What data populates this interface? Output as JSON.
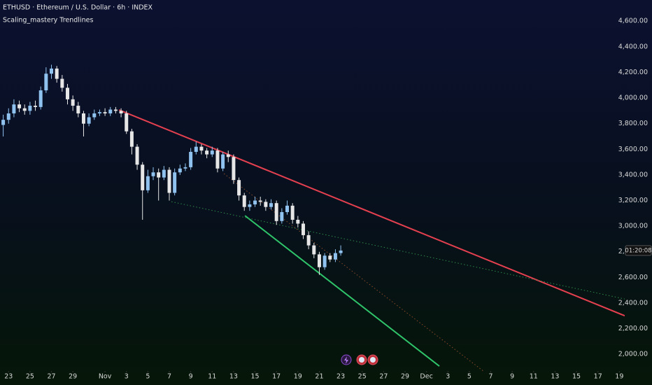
{
  "chart_data": {
    "type": "candlestick",
    "title": "ETHUSD · Ethereum / U.S. Dollar · 6h · INDEX",
    "subtitle": "Scaling_mastery Trendlines",
    "xlim": [
      -0.8,
      57.5
    ],
    "ylim": [
      1870,
      4765
    ],
    "xticks": [
      {
        "value": 0,
        "label": "23"
      },
      {
        "value": 2,
        "label": "25"
      },
      {
        "value": 4,
        "label": "27"
      },
      {
        "value": 6,
        "label": "29"
      },
      {
        "value": 9,
        "label": "Nov"
      },
      {
        "value": 11,
        "label": "3"
      },
      {
        "value": 13,
        "label": "5"
      },
      {
        "value": 15,
        "label": "7"
      },
      {
        "value": 17,
        "label": "9"
      },
      {
        "value": 19,
        "label": "11"
      },
      {
        "value": 21,
        "label": "13"
      },
      {
        "value": 23,
        "label": "15"
      },
      {
        "value": 25,
        "label": "17"
      },
      {
        "value": 27,
        "label": "19"
      },
      {
        "value": 29,
        "label": "21"
      },
      {
        "value": 31,
        "label": "23"
      },
      {
        "value": 33,
        "label": "25"
      },
      {
        "value": 35,
        "label": "27"
      },
      {
        "value": 37,
        "label": "29"
      },
      {
        "value": 39,
        "label": "Dec"
      },
      {
        "value": 41,
        "label": "3"
      },
      {
        "value": 43,
        "label": "5"
      },
      {
        "value": 45,
        "label": "7"
      },
      {
        "value": 47,
        "label": "9"
      },
      {
        "value": 49,
        "label": "11"
      },
      {
        "value": 51,
        "label": "13"
      },
      {
        "value": 53,
        "label": "15"
      },
      {
        "value": 55,
        "label": "17"
      },
      {
        "value": 57,
        "label": "19"
      }
    ],
    "yticks": [
      {
        "value": 2000,
        "label": "2,000.00"
      },
      {
        "value": 2200,
        "label": "2,200.00"
      },
      {
        "value": 2400,
        "label": "2,400.00"
      },
      {
        "value": 2600,
        "label": "2,600.00"
      },
      {
        "value": 2800,
        "label": "2,800.00"
      },
      {
        "value": 3000,
        "label": "3,000.00"
      },
      {
        "value": 3200,
        "label": "3,200.00"
      },
      {
        "value": 3400,
        "label": "3,400.00"
      },
      {
        "value": 3600,
        "label": "3,600.00"
      },
      {
        "value": 3800,
        "label": "3,800.00"
      },
      {
        "value": 4000,
        "label": "4,000.00"
      },
      {
        "value": 4200,
        "label": "4,200.00"
      },
      {
        "value": 4400,
        "label": "4,400.00"
      },
      {
        "value": 4600,
        "label": "4,600.00"
      }
    ],
    "up_color": "#90c2f0",
    "down_color": "#e6e6e6",
    "x": [
      -0.5,
      0,
      0.5,
      1,
      1.5,
      2,
      2.5,
      3,
      3.5,
      4,
      4.5,
      5,
      5.5,
      6,
      6.5,
      7,
      7.5,
      8,
      8.5,
      9,
      9.5,
      10,
      10.5,
      11,
      11.5,
      12,
      12.5,
      13,
      13.5,
      14,
      14.5,
      15,
      15.5,
      16,
      16.5,
      17,
      17.5,
      18,
      18.5,
      19,
      19.5,
      20,
      20.5,
      21,
      21.5,
      22,
      22.5,
      23,
      23.5,
      24,
      24.5,
      25,
      25.5,
      26,
      26.5,
      27,
      27.5,
      28,
      28.5,
      29,
      29.5,
      30,
      30.5,
      31
    ],
    "open": [
      3790,
      3830,
      3880,
      3950,
      3920,
      3900,
      3940,
      3930,
      4060,
      4190,
      4230,
      4150,
      4080,
      3990,
      3940,
      3880,
      3800,
      3850,
      3880,
      3890,
      3880,
      3910,
      3900,
      3880,
      3740,
      3620,
      3480,
      3280,
      3390,
      3420,
      3380,
      3440,
      3260,
      3420,
      3450,
      3460,
      3580,
      3620,
      3590,
      3560,
      3590,
      3450,
      3560,
      3540,
      3360,
      3240,
      3150,
      3170,
      3200,
      3190,
      3150,
      3180,
      3040,
      3110,
      3160,
      3050,
      3020,
      2930,
      2850,
      2780,
      2680,
      2770,
      2740,
      2790
    ],
    "high": [
      3870,
      3920,
      3990,
      3980,
      3950,
      3970,
      3980,
      4090,
      4240,
      4260,
      4250,
      4180,
      4110,
      4020,
      3970,
      3900,
      3880,
      3910,
      3910,
      3920,
      3930,
      3930,
      3920,
      3900,
      3760,
      3640,
      3500,
      3440,
      3460,
      3450,
      3470,
      3460,
      3450,
      3480,
      3490,
      3610,
      3660,
      3640,
      3610,
      3620,
      3610,
      3580,
      3590,
      3560,
      3380,
      3260,
      3200,
      3230,
      3230,
      3210,
      3210,
      3200,
      3140,
      3200,
      3180,
      3080,
      3040,
      2960,
      2870,
      2800,
      2790,
      2790,
      2820,
      2850
    ],
    "low": [
      3700,
      3800,
      3850,
      3890,
      3870,
      3870,
      3900,
      3910,
      4040,
      4150,
      4120,
      4050,
      3950,
      3900,
      3850,
      3700,
      3780,
      3830,
      3860,
      3860,
      3860,
      3880,
      3850,
      3720,
      3560,
      3440,
      3050,
      3260,
      3360,
      3200,
      3360,
      3200,
      3240,
      3400,
      3430,
      3440,
      3560,
      3560,
      3530,
      3540,
      3420,
      3430,
      3500,
      3330,
      3200,
      3120,
      3120,
      3150,
      3160,
      3120,
      3130,
      3010,
      3020,
      3090,
      3020,
      2990,
      2900,
      2820,
      2750,
      2620,
      2660,
      2720,
      2720,
      2770
    ],
    "close": [
      3830,
      3880,
      3950,
      3920,
      3900,
      3940,
      3930,
      4060,
      4190,
      4230,
      4150,
      4080,
      3990,
      3940,
      3880,
      3800,
      3850,
      3880,
      3890,
      3880,
      3910,
      3900,
      3880,
      3740,
      3620,
      3480,
      3280,
      3390,
      3420,
      3380,
      3440,
      3260,
      3420,
      3450,
      3460,
      3580,
      3620,
      3590,
      3560,
      3590,
      3450,
      3560,
      3540,
      3360,
      3240,
      3150,
      3170,
      3200,
      3190,
      3150,
      3180,
      3040,
      3110,
      3160,
      3050,
      3020,
      2930,
      2850,
      2780,
      2680,
      2770,
      2740,
      2790,
      2810
    ],
    "lines": [
      {
        "color": "#e5404f",
        "style": "solid",
        "x": [
          10.31,
          57.5
        ],
        "y": [
          3907,
          2301
        ]
      },
      {
        "color": "#2fc46a",
        "style": "solid",
        "x": [
          22.06,
          40.2
        ],
        "y": [
          3082,
          1908
        ]
      },
      {
        "color": "#2f8a4a",
        "style": "dotted",
        "x": [
          15.2,
          57.5
        ],
        "y": [
          3191,
          2432
        ]
      },
      {
        "color": "#8a4a2a",
        "style": "dotted",
        "x": [
          20.1,
          44.3
        ],
        "y": [
          3410,
          1870
        ]
      }
    ],
    "countdown": "01:20:08"
  }
}
